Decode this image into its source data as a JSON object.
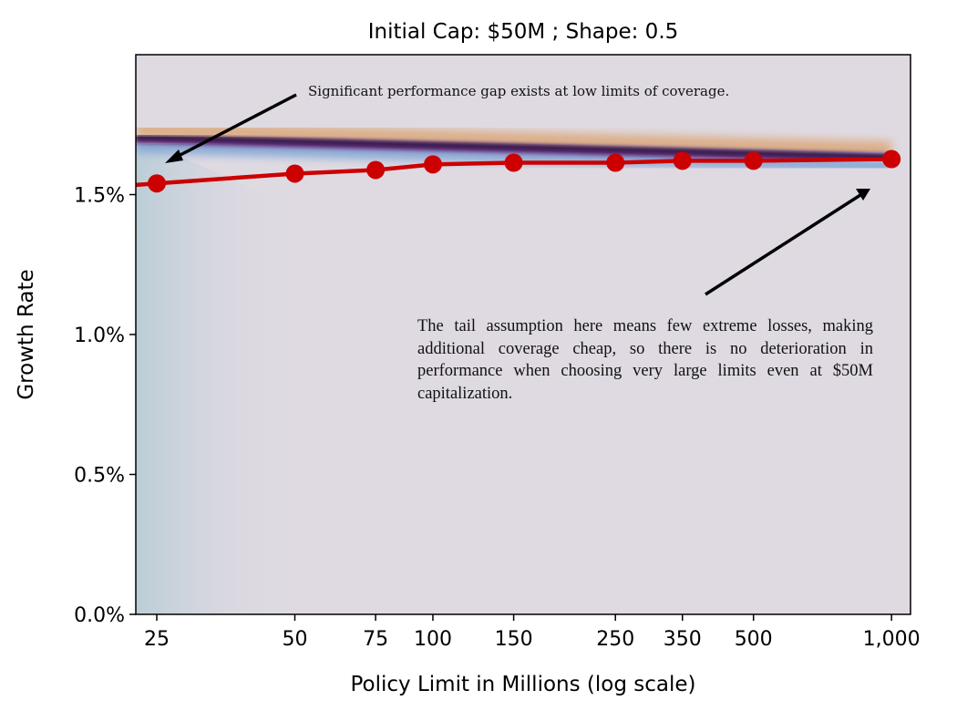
{
  "chart_data": {
    "type": "line",
    "title": "Initial Cap: $50M ; Shape: 0.5",
    "xlabel": "Policy Limit in Millions (log scale)",
    "ylabel": "Growth Rate",
    "xscale": "log",
    "xlim": [
      22.5,
      1100
    ],
    "ylim": [
      0,
      2.0
    ],
    "grid": false,
    "x_ticks": [
      25,
      50,
      75,
      100,
      150,
      250,
      350,
      500,
      1000
    ],
    "x_tick_labels": [
      "25",
      "50",
      "75",
      "100",
      "150",
      "250",
      "350",
      "500",
      "1,000"
    ],
    "y_ticks": [
      0,
      0.5,
      1.0,
      1.5
    ],
    "y_tick_labels": [
      "0.0%",
      "0.5%",
      "1.0%",
      "1.5%"
    ],
    "series": [
      {
        "x": [
          25,
          50,
          75,
          100,
          150,
          250,
          350,
          500,
          1000
        ],
        "y": [
          1.54,
          1.575,
          1.588,
          1.608,
          1.614,
          1.614,
          1.621,
          1.621,
          1.627
        ],
        "color": "#cc0000"
      }
    ],
    "background_density": "heatmap band near 1.62–1.70% (dark purple core, orange above, blue below)",
    "annotations": [
      {
        "text": "Significant performance gap exists at low limits of coverage.",
        "arrow_to": [
          25,
          1.62
        ]
      },
      {
        "text": "The tail assumption here means few extreme losses, making additional coverage cheap, so there is no deterioration in performance when choosing very large limits even at $50M capitalization.",
        "arrow_to": [
          900,
          1.52
        ]
      }
    ],
    "colors": {
      "line": "#cc0000",
      "background": "#dfdae2",
      "band_core": "#2a0f3a",
      "band_upper": "#d9a070",
      "band_lower": "#7fa8d8"
    }
  }
}
